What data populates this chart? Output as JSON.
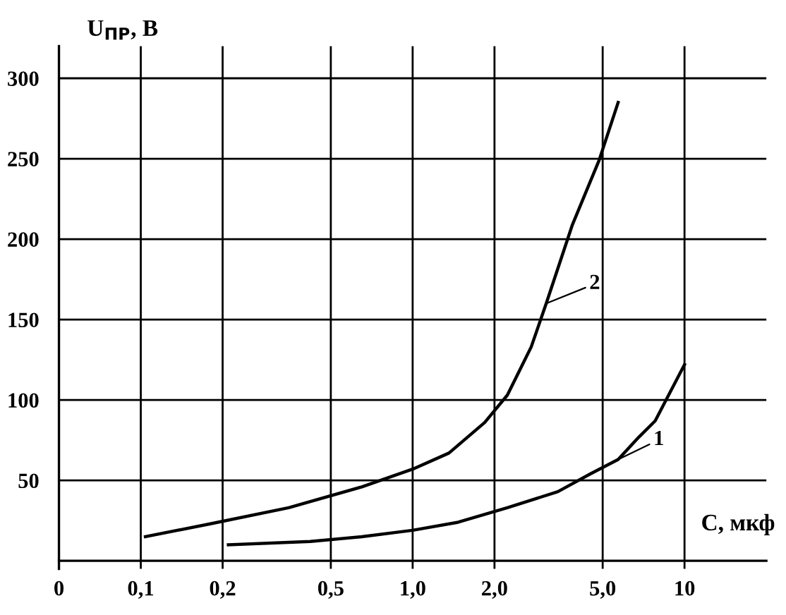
{
  "chart_data": {
    "type": "line",
    "xlabel": "С, мкф",
    "ylabel": "U$_{ПР}$, В",
    "log": "x",
    "xlim": [
      0.05,
      20
    ],
    "xticks": [
      {
        "value": 0.05,
        "label": "0"
      },
      {
        "value": 0.1,
        "label": "0,1"
      },
      {
        "value": 0.2,
        "label": "0,2"
      },
      {
        "value": 0.5,
        "label": "0,5"
      },
      {
        "value": 1,
        "label": "1,0"
      },
      {
        "value": 2,
        "label": "2,0"
      },
      {
        "value": 5,
        "label": "5,0"
      },
      10
    ],
    "ylim": [
      -5,
      320
    ],
    "yticks": [
      50,
      100,
      150,
      200,
      250,
      300
    ],
    "grid": true,
    "legend": "right",
    "marker": "none",
    "line_style": "solid",
    "series": [
      {
        "name": "2",
        "color": "#000000",
        "x": [
          0.104,
          0.18,
          0.35,
          0.65,
          1.0,
          1.36,
          1.84,
          2.23,
          2.73,
          3.1,
          3.87,
          4.85,
          5.7
        ],
        "values": [
          15,
          23,
          33,
          46,
          57,
          67,
          86,
          103,
          133,
          160,
          209,
          249,
          285
        ]
      },
      {
        "name": "1",
        "color": "#000000",
        "x": [
          0.21,
          0.42,
          0.65,
          1.0,
          1.47,
          2.23,
          3.42,
          4.5,
          5.7,
          6.8,
          7.8,
          10
        ],
        "values": [
          10,
          12,
          15,
          19,
          24,
          33,
          43,
          54,
          63,
          77,
          87,
          122
        ]
      }
    ]
  }
}
